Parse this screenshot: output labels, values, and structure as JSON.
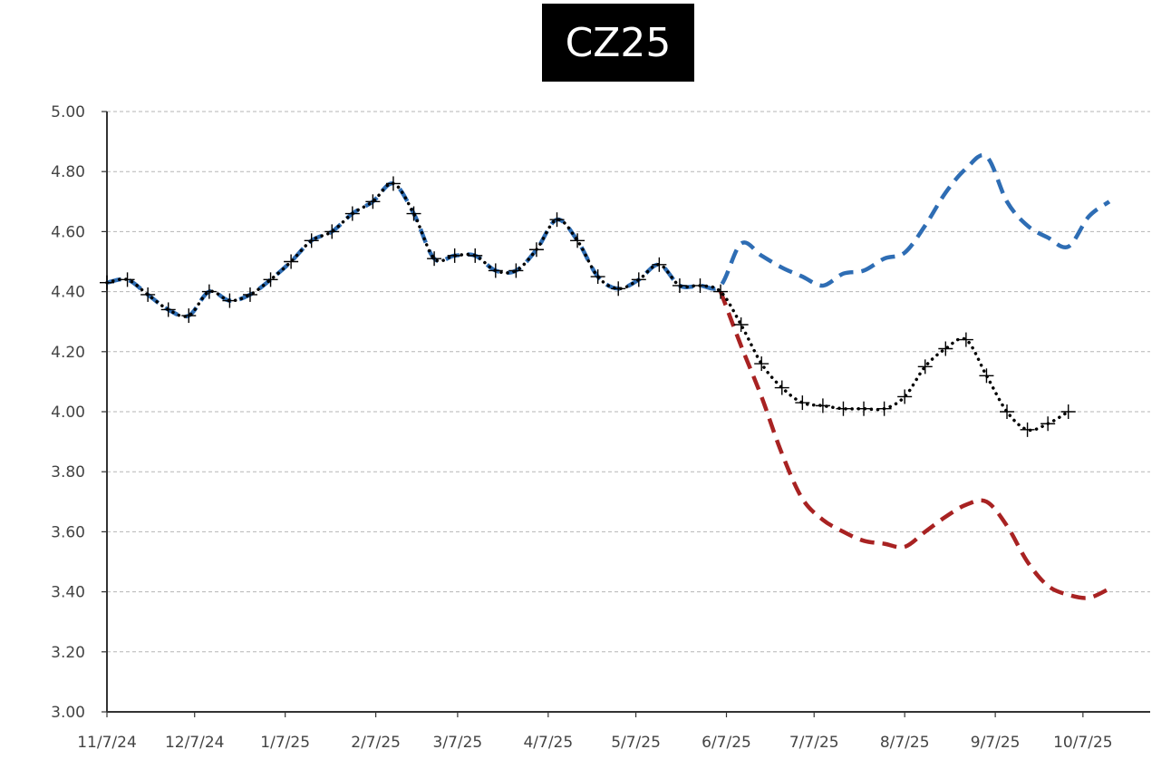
{
  "chart_data": {
    "type": "line",
    "title": "CZ25",
    "xlabel": "",
    "ylabel": "",
    "ylim": [
      3.0,
      5.0
    ],
    "y_ticks": [
      "3.00",
      "3.20",
      "3.40",
      "3.60",
      "3.80",
      "4.00",
      "4.20",
      "4.40",
      "4.60",
      "4.80",
      "5.00"
    ],
    "xlim": [
      "2024-11-07",
      "2025-10-30"
    ],
    "x_ticks": [
      {
        "label": "11/7/24",
        "date": "2024-11-07"
      },
      {
        "label": "12/7/24",
        "date": "2024-12-07"
      },
      {
        "label": "1/7/25",
        "date": "2025-01-07"
      },
      {
        "label": "2/7/25",
        "date": "2025-02-07"
      },
      {
        "label": "3/7/25",
        "date": "2025-03-07"
      },
      {
        "label": "4/7/25",
        "date": "2025-04-07"
      },
      {
        "label": "5/7/25",
        "date": "2025-05-07"
      },
      {
        "label": "6/7/25",
        "date": "2025-06-07"
      },
      {
        "label": "7/7/25",
        "date": "2025-07-07"
      },
      {
        "label": "8/7/25",
        "date": "2025-08-07"
      },
      {
        "label": "9/7/25",
        "date": "2025-09-07"
      },
      {
        "label": "10/7/25",
        "date": "2025-10-07"
      }
    ],
    "grid": "horizontal-dashed",
    "colors": {
      "black": "#000000",
      "blue": "#2e6db4",
      "red": "#a82222",
      "grid": "#b5b5b5",
      "axis": "#333333"
    },
    "series": [
      {
        "style": "dotted-with-cross-markers",
        "color": "#000000",
        "points": [
          [
            "2024-11-07",
            4.43
          ],
          [
            "2024-11-14",
            4.44
          ],
          [
            "2024-11-21",
            4.39
          ],
          [
            "2024-11-28",
            4.34
          ],
          [
            "2024-12-05",
            4.32
          ],
          [
            "2024-12-12",
            4.4
          ],
          [
            "2024-12-19",
            4.37
          ],
          [
            "2024-12-26",
            4.39
          ],
          [
            "2025-01-02",
            4.44
          ],
          [
            "2025-01-09",
            4.5
          ],
          [
            "2025-01-16",
            4.57
          ],
          [
            "2025-01-23",
            4.6
          ],
          [
            "2025-01-30",
            4.66
          ],
          [
            "2025-02-06",
            4.7
          ],
          [
            "2025-02-13",
            4.76
          ],
          [
            "2025-02-20",
            4.66
          ],
          [
            "2025-02-27",
            4.51
          ],
          [
            "2025-03-06",
            4.52
          ],
          [
            "2025-03-13",
            4.52
          ],
          [
            "2025-03-20",
            4.47
          ],
          [
            "2025-03-27",
            4.47
          ],
          [
            "2025-04-03",
            4.54
          ],
          [
            "2025-04-10",
            4.64
          ],
          [
            "2025-04-17",
            4.57
          ],
          [
            "2025-04-24",
            4.45
          ],
          [
            "2025-05-01",
            4.41
          ],
          [
            "2025-05-08",
            4.44
          ],
          [
            "2025-05-15",
            4.49
          ],
          [
            "2025-05-22",
            4.42
          ],
          [
            "2025-05-29",
            4.42
          ],
          [
            "2025-06-05",
            4.4
          ],
          [
            "2025-06-12",
            4.29
          ],
          [
            "2025-06-19",
            4.16
          ],
          [
            "2025-06-26",
            4.08
          ],
          [
            "2025-07-03",
            4.03
          ],
          [
            "2025-07-10",
            4.02
          ],
          [
            "2025-07-17",
            4.01
          ],
          [
            "2025-07-24",
            4.01
          ],
          [
            "2025-07-31",
            4.01
          ],
          [
            "2025-08-07",
            4.05
          ],
          [
            "2025-08-14",
            4.15
          ],
          [
            "2025-08-21",
            4.21
          ],
          [
            "2025-08-28",
            4.24
          ],
          [
            "2025-09-04",
            4.12
          ],
          [
            "2025-09-11",
            4.0
          ],
          [
            "2025-09-18",
            3.94
          ],
          [
            "2025-09-25",
            3.96
          ],
          [
            "2025-10-02",
            4.0
          ]
        ]
      },
      {
        "style": "dashed",
        "color": "#2e6db4",
        "points": [
          [
            "2024-11-07",
            4.43
          ],
          [
            "2024-11-14",
            4.44
          ],
          [
            "2024-11-21",
            4.39
          ],
          [
            "2024-11-28",
            4.34
          ],
          [
            "2024-12-05",
            4.32
          ],
          [
            "2024-12-12",
            4.4
          ],
          [
            "2024-12-19",
            4.37
          ],
          [
            "2024-12-26",
            4.39
          ],
          [
            "2025-01-02",
            4.44
          ],
          [
            "2025-01-09",
            4.5
          ],
          [
            "2025-01-16",
            4.57
          ],
          [
            "2025-01-23",
            4.6
          ],
          [
            "2025-01-30",
            4.66
          ],
          [
            "2025-02-06",
            4.7
          ],
          [
            "2025-02-13",
            4.76
          ],
          [
            "2025-02-20",
            4.66
          ],
          [
            "2025-02-27",
            4.51
          ],
          [
            "2025-03-06",
            4.52
          ],
          [
            "2025-03-13",
            4.52
          ],
          [
            "2025-03-20",
            4.47
          ],
          [
            "2025-03-27",
            4.47
          ],
          [
            "2025-04-03",
            4.54
          ],
          [
            "2025-04-10",
            4.64
          ],
          [
            "2025-04-17",
            4.57
          ],
          [
            "2025-04-24",
            4.45
          ],
          [
            "2025-05-01",
            4.41
          ],
          [
            "2025-05-08",
            4.44
          ],
          [
            "2025-05-15",
            4.49
          ],
          [
            "2025-05-22",
            4.42
          ],
          [
            "2025-05-29",
            4.42
          ],
          [
            "2025-06-05",
            4.42
          ],
          [
            "2025-06-12",
            4.56
          ],
          [
            "2025-06-19",
            4.52
          ],
          [
            "2025-06-26",
            4.48
          ],
          [
            "2025-07-03",
            4.45
          ],
          [
            "2025-07-10",
            4.42
          ],
          [
            "2025-07-17",
            4.46
          ],
          [
            "2025-07-24",
            4.47
          ],
          [
            "2025-07-31",
            4.51
          ],
          [
            "2025-08-07",
            4.53
          ],
          [
            "2025-08-14",
            4.62
          ],
          [
            "2025-08-21",
            4.73
          ],
          [
            "2025-08-28",
            4.81
          ],
          [
            "2025-09-04",
            4.85
          ],
          [
            "2025-09-11",
            4.7
          ],
          [
            "2025-09-18",
            4.62
          ],
          [
            "2025-09-25",
            4.58
          ],
          [
            "2025-10-02",
            4.55
          ],
          [
            "2025-10-09",
            4.65
          ],
          [
            "2025-10-16",
            4.7
          ]
        ]
      },
      {
        "style": "dashed",
        "color": "#a82222",
        "points": [
          [
            "2025-06-05",
            4.4
          ],
          [
            "2025-06-12",
            4.22
          ],
          [
            "2025-06-19",
            4.05
          ],
          [
            "2025-06-26",
            3.86
          ],
          [
            "2025-07-03",
            3.71
          ],
          [
            "2025-07-10",
            3.64
          ],
          [
            "2025-07-17",
            3.6
          ],
          [
            "2025-07-24",
            3.57
          ],
          [
            "2025-07-31",
            3.56
          ],
          [
            "2025-08-07",
            3.55
          ],
          [
            "2025-08-14",
            3.6
          ],
          [
            "2025-08-21",
            3.65
          ],
          [
            "2025-08-28",
            3.69
          ],
          [
            "2025-09-04",
            3.7
          ],
          [
            "2025-09-11",
            3.62
          ],
          [
            "2025-09-18",
            3.5
          ],
          [
            "2025-09-25",
            3.42
          ],
          [
            "2025-10-02",
            3.39
          ],
          [
            "2025-10-09",
            3.38
          ],
          [
            "2025-10-16",
            3.41
          ]
        ]
      }
    ]
  }
}
